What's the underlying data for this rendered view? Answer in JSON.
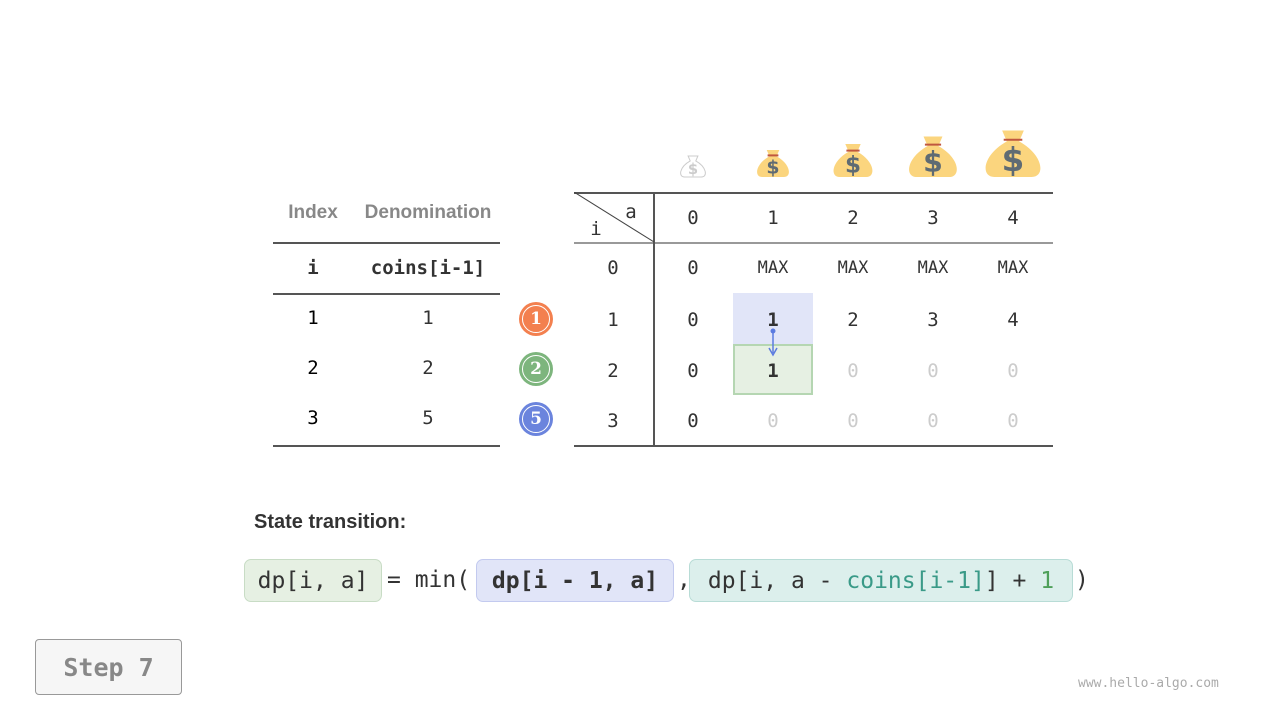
{
  "coins_table": {
    "headers": [
      "Index",
      "Denomination"
    ],
    "subheaders": [
      "i",
      "coins[i-1]"
    ],
    "rows": [
      [
        "1",
        "1"
      ],
      [
        "2",
        "2"
      ],
      [
        "3",
        "5"
      ]
    ]
  },
  "coin_badges": [
    {
      "label": "1",
      "color": "#f3804f"
    },
    {
      "label": "2",
      "color": "#7db57d"
    },
    {
      "label": "5",
      "color": "#6b84dd"
    }
  ],
  "dp_table": {
    "corner_a": "a",
    "corner_i": "i",
    "col_headers": [
      "0",
      "1",
      "2",
      "3",
      "4"
    ],
    "row_headers": [
      "0",
      "1",
      "2",
      "3"
    ],
    "rows": [
      [
        "0",
        "MAX",
        "MAX",
        "MAX",
        "MAX"
      ],
      [
        "0",
        "1",
        "2",
        "3",
        "4"
      ],
      [
        "0",
        "1",
        "0",
        "0",
        "0"
      ],
      [
        "0",
        "0",
        "0",
        "0",
        "0"
      ]
    ]
  },
  "colors": {
    "current_cell": "#e6f0e3",
    "source_cell": "#e1e5f8",
    "arrow": "#5b7be0",
    "bag": "#fbd57e"
  },
  "transition": {
    "title": "State transition:",
    "lhs": "dp[i, a]",
    "eq": "= min(",
    "opt1": "dp[i - 1, a]",
    "comma": ",",
    "opt2_a": "dp[i, a - ",
    "opt2_coins": "coins[i-1]",
    "opt2_b": "] + ",
    "opt2_one": "1",
    "close": ")"
  },
  "step_label": "Step 7",
  "watermark": "www.hello-algo.com"
}
